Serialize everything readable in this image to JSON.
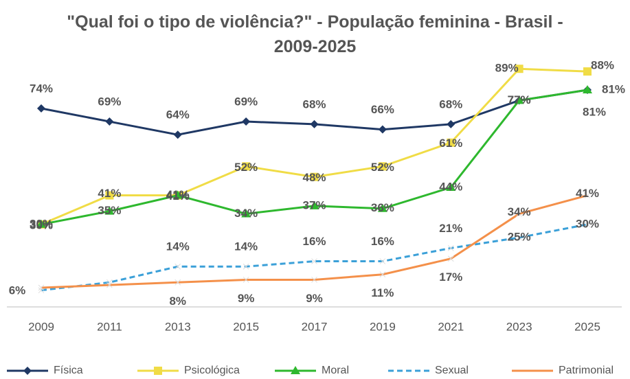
{
  "chart_data": {
    "type": "line",
    "title": "\"Qual foi o tipo de violência?\" - População feminina - Brasil - 2009-2025",
    "categories": [
      "2009",
      "2011",
      "2013",
      "2015",
      "2017",
      "2019",
      "2021",
      "2023",
      "2025"
    ],
    "ylim": [
      0,
      100
    ],
    "series": [
      {
        "name": "Física",
        "color": "#1f3864",
        "marker": "diamond",
        "values": [
          74,
          69,
          64,
          69,
          68,
          66,
          68,
          77,
          81
        ],
        "value_labels": [
          "74%",
          "69%",
          "64%",
          "69%",
          "68%",
          "66%",
          "68%",
          "77%",
          "81%"
        ]
      },
      {
        "name": "Psicológica",
        "color": "#f0dc46",
        "marker": "square",
        "values": [
          30,
          41,
          41,
          52,
          48,
          52,
          61,
          89,
          88
        ],
        "value_labels": [
          "30%",
          "41%",
          "41%",
          "52%",
          "48%",
          "52%",
          "61%",
          "89%",
          "88%"
        ]
      },
      {
        "name": "Moral",
        "color": "#2eb82e",
        "marker": "triangle",
        "values": [
          30,
          35,
          41,
          34,
          37,
          36,
          44,
          77,
          81
        ],
        "value_labels": [
          "30%",
          "35%",
          "41%",
          "34%",
          "37%",
          "36%",
          "44%",
          "77%",
          "81%"
        ]
      },
      {
        "name": "Sexual",
        "color": "#3ba0d8",
        "dashed": true,
        "values": [
          5,
          8,
          14,
          14,
          16,
          16,
          21,
          25,
          30
        ],
        "value_labels": [
          null,
          null,
          "14%",
          "14%",
          "16%",
          "16%",
          "21%",
          "25%",
          "30%"
        ]
      },
      {
        "name": "Patrimonial",
        "color": "#f4904a",
        "values": [
          6,
          7,
          8,
          9,
          9,
          11,
          17,
          34,
          41
        ],
        "value_labels": [
          "6%",
          null,
          "8%",
          "9%",
          "9%",
          "11%",
          "17%",
          "34%",
          "41%"
        ]
      }
    ]
  }
}
